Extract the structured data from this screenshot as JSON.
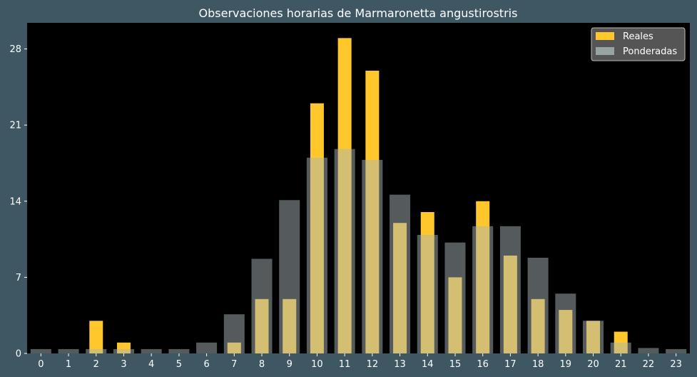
{
  "chart_data": {
    "type": "bar",
    "title": "Observaciones horarias de Marmaronetta angustirostris",
    "xlabel": "",
    "ylabel": "",
    "categories": [
      "0",
      "1",
      "2",
      "3",
      "4",
      "5",
      "6",
      "7",
      "8",
      "9",
      "10",
      "11",
      "12",
      "13",
      "14",
      "15",
      "16",
      "17",
      "18",
      "19",
      "20",
      "21",
      "22",
      "23"
    ],
    "series": [
      {
        "name": "Reales",
        "color": "#ffc72c",
        "values": [
          0,
          0,
          3,
          1,
          0,
          0,
          0,
          1,
          5,
          5,
          23,
          29,
          26,
          12,
          13,
          7,
          14,
          9,
          5,
          4,
          3,
          2,
          0,
          0
        ]
      },
      {
        "name": "Ponderadas",
        "color": "#a9b6b8",
        "opacity": 0.5,
        "values": [
          0.4,
          0.4,
          0.4,
          0.4,
          0.4,
          0.4,
          1.0,
          3.6,
          8.7,
          14.1,
          18.0,
          18.8,
          17.8,
          14.6,
          10.9,
          10.2,
          11.7,
          11.7,
          8.8,
          5.5,
          3.0,
          1.0,
          0.5,
          0.4
        ]
      }
    ],
    "yticks": [
      0,
      7,
      14,
      21,
      28
    ],
    "ylim": [
      0,
      30.4
    ],
    "grid": false,
    "legend": "top-right",
    "background": "#000000",
    "figure_background": "#3f5763"
  }
}
